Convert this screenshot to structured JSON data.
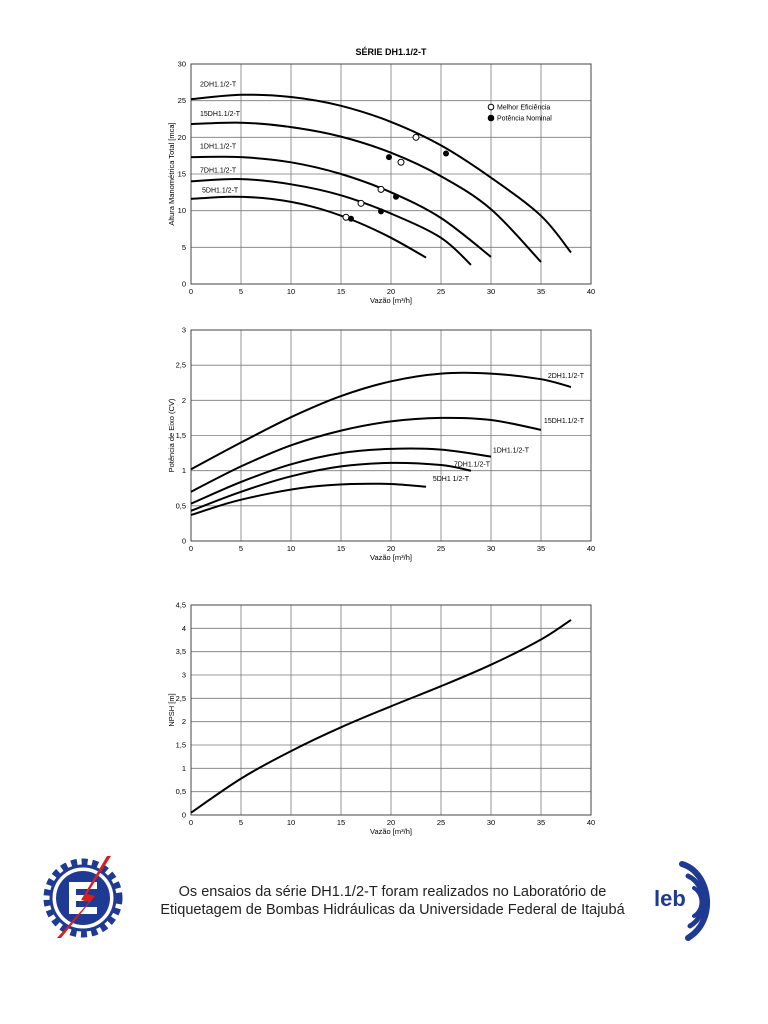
{
  "chart_data": [
    {
      "type": "line",
      "title": "SÉRIE DH1.1/2-T",
      "xlabel": "Vazão [m³/h]",
      "ylabel": "Altura Manométrica Total  [mca]",
      "xlim": [
        0,
        40
      ],
      "ylim": [
        0,
        30
      ],
      "xticks": [
        "0",
        "5",
        "10",
        "15",
        "20",
        "25",
        "30",
        "35",
        "40"
      ],
      "yticks": [
        "0",
        "5",
        "10",
        "15",
        "20",
        "25",
        "30"
      ],
      "grid": true,
      "legend": [
        {
          "label": "Melhor Eficiência",
          "marker": "open-circle"
        },
        {
          "label": "Potência Nominal",
          "marker": "filled-circle"
        }
      ],
      "series": [
        {
          "name": "2DH1.1/2-T",
          "points": [
            [
              0,
              25.2
            ],
            [
              5,
              25.8
            ],
            [
              10,
              25.5
            ],
            [
              15,
              24.3
            ],
            [
              20,
              22.1
            ],
            [
              25,
              18.9
            ],
            [
              30,
              14.5
            ],
            [
              35,
              9.3
            ],
            [
              38,
              4.3
            ]
          ],
          "best_efficiency": [
            22.5,
            20.0
          ],
          "nominal_power": [
            25.5,
            17.8
          ]
        },
        {
          "name": "15DH1.1/2-T",
          "points": [
            [
              0,
              21.8
            ],
            [
              5,
              22.0
            ],
            [
              10,
              21.4
            ],
            [
              15,
              20.1
            ],
            [
              20,
              17.9
            ],
            [
              25,
              14.7
            ],
            [
              30,
              10.2
            ],
            [
              35,
              3.0
            ]
          ],
          "best_efficiency": [
            21.0,
            16.6
          ],
          "nominal_power": [
            19.8,
            17.3
          ]
        },
        {
          "name": "1DH1.1/2-T",
          "points": [
            [
              0,
              17.3
            ],
            [
              5,
              17.3
            ],
            [
              10,
              16.6
            ],
            [
              15,
              15.0
            ],
            [
              20,
              12.5
            ],
            [
              25,
              9.0
            ],
            [
              30,
              3.7
            ]
          ],
          "best_efficiency": [
            19.0,
            12.9
          ],
          "nominal_power": [
            20.5,
            11.9
          ]
        },
        {
          "name": "7DH1.1/2-T",
          "points": [
            [
              0,
              14.0
            ],
            [
              5,
              14.3
            ],
            [
              10,
              13.6
            ],
            [
              15,
              12.1
            ],
            [
              20,
              9.6
            ],
            [
              25,
              6.3
            ],
            [
              28,
              2.6
            ]
          ],
          "best_efficiency": [
            17.0,
            11.0
          ],
          "nominal_power": [
            19.0,
            9.9
          ]
        },
        {
          "name": "5DH1.1/2-T",
          "points": [
            [
              0,
              11.6
            ],
            [
              4,
              11.9
            ],
            [
              8,
              11.6
            ],
            [
              12,
              10.6
            ],
            [
              16,
              8.8
            ],
            [
              20,
              6.3
            ],
            [
              23.5,
              3.6
            ]
          ],
          "best_efficiency": [
            15.5,
            9.1
          ],
          "nominal_power": [
            16.0,
            8.9
          ]
        }
      ]
    },
    {
      "type": "line",
      "title": "",
      "xlabel": "Vazão [m³/h]",
      "ylabel": "Potência de Eixo (CV)",
      "xlim": [
        0,
        40
      ],
      "ylim": [
        0,
        3
      ],
      "xticks": [
        "0",
        "5",
        "10",
        "15",
        "20",
        "25",
        "30",
        "35",
        "40"
      ],
      "yticks": [
        "0",
        "0,5",
        "1",
        "1,5",
        "2",
        "2,5",
        "3"
      ],
      "grid": true,
      "series": [
        {
          "name": "2DH1.1/2-T",
          "points": [
            [
              0,
              1.02
            ],
            [
              5,
              1.4
            ],
            [
              10,
              1.76
            ],
            [
              15,
              2.06
            ],
            [
              20,
              2.27
            ],
            [
              25,
              2.38
            ],
            [
              30,
              2.38
            ],
            [
              35,
              2.3
            ],
            [
              38,
              2.19
            ]
          ]
        },
        {
          "name": "15DH1.1/2-T",
          "points": [
            [
              0,
              0.7
            ],
            [
              5,
              1.06
            ],
            [
              10,
              1.36
            ],
            [
              15,
              1.57
            ],
            [
              20,
              1.7
            ],
            [
              25,
              1.75
            ],
            [
              30,
              1.72
            ],
            [
              35,
              1.58
            ]
          ]
        },
        {
          "name": "1DH1.1/2-T",
          "points": [
            [
              0,
              0.53
            ],
            [
              5,
              0.84
            ],
            [
              10,
              1.09
            ],
            [
              15,
              1.25
            ],
            [
              20,
              1.31
            ],
            [
              25,
              1.3
            ],
            [
              30,
              1.2
            ]
          ]
        },
        {
          "name": "7DH1.1/2-T",
          "points": [
            [
              0,
              0.43
            ],
            [
              5,
              0.7
            ],
            [
              10,
              0.92
            ],
            [
              15,
              1.06
            ],
            [
              20,
              1.11
            ],
            [
              25,
              1.08
            ],
            [
              28,
              1.0
            ]
          ]
        },
        {
          "name": "5DH1 1/2-T",
          "points": [
            [
              0,
              0.37
            ],
            [
              4,
              0.55
            ],
            [
              8,
              0.68
            ],
            [
              12,
              0.77
            ],
            [
              16,
              0.81
            ],
            [
              20,
              0.81
            ],
            [
              23.5,
              0.77
            ]
          ]
        }
      ]
    },
    {
      "type": "line",
      "title": "",
      "xlabel": "Vazão [m³/h]",
      "ylabel": "NPSH [m]",
      "xlim": [
        0,
        40
      ],
      "ylim": [
        0,
        4.5
      ],
      "xticks": [
        "0",
        "5",
        "10",
        "15",
        "20",
        "25",
        "30",
        "35",
        "40"
      ],
      "yticks": [
        "0",
        "0,5",
        "1",
        "1,5",
        "2",
        "2,5",
        "3",
        "3,5",
        "4",
        "4,5"
      ],
      "grid": true,
      "series": [
        {
          "name": "",
          "points": [
            [
              0,
              0.05
            ],
            [
              5,
              0.78
            ],
            [
              10,
              1.37
            ],
            [
              15,
              1.88
            ],
            [
              20,
              2.33
            ],
            [
              25,
              2.76
            ],
            [
              30,
              3.22
            ],
            [
              35,
              3.76
            ],
            [
              38,
              4.18
            ]
          ]
        }
      ]
    }
  ],
  "footer": {
    "line1": "Os ensaios da série DH1.1/2-T foram realizados no Laboratório de",
    "line2": "Etiquetagem de Bombas Hidráulicas da Universidade Federal de Itajubá",
    "logo_left": "university-gear-logo",
    "logo_right": "leb-logo",
    "logo_right_text": "leb"
  },
  "colors": {
    "curve": "#000000",
    "grid": "#7a7a7a",
    "logo_blue": "#1f3a93",
    "logo_red": "#d42020"
  }
}
